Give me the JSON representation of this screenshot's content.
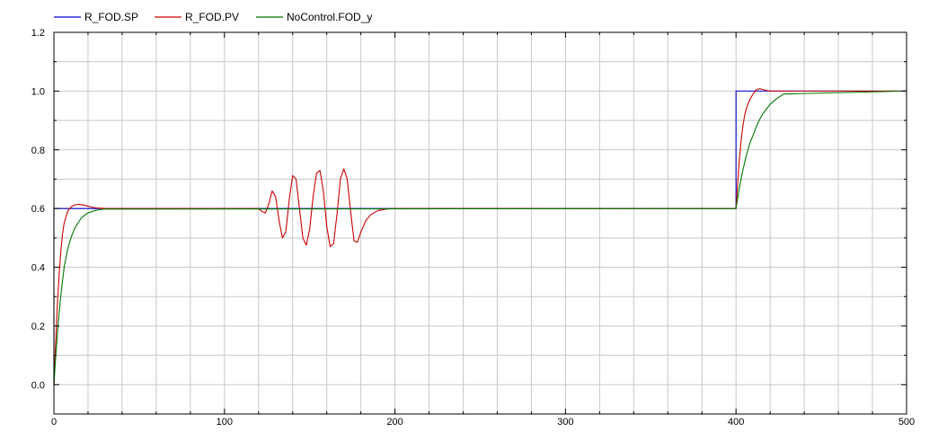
{
  "chart_data": {
    "type": "line",
    "title": "",
    "xlabel": "",
    "ylabel": "",
    "xlim": [
      0,
      500
    ],
    "ylim": [
      -0.1,
      1.2
    ],
    "x_ticks": [
      0,
      100,
      200,
      300,
      400,
      500
    ],
    "x_tick_labels": [
      "0",
      "100",
      "200",
      "300",
      "400",
      "500"
    ],
    "y_ticks": [
      0.0,
      0.2,
      0.4,
      0.6,
      0.8,
      1.0,
      1.2
    ],
    "y_tick_labels": [
      "0.0",
      "0.2",
      "0.4",
      "0.6",
      "0.8",
      "1.0",
      "1.2"
    ],
    "grid": true,
    "legend_position": "top-left",
    "series": [
      {
        "name": "R_FOD.SP",
        "color": "#0000cc",
        "x": [
          0,
          0,
          400,
          400,
          500
        ],
        "y": [
          0,
          0.6,
          0.6,
          1.0,
          1.0
        ]
      },
      {
        "name": "R_FOD.PV",
        "color": "#cc0000",
        "x": [
          0,
          1,
          2,
          3,
          4,
          5,
          6,
          8,
          10,
          12,
          14,
          16,
          18,
          20,
          22,
          25,
          28,
          30,
          120,
          122,
          124,
          126,
          128,
          130,
          132,
          134,
          136,
          138,
          140,
          142,
          144,
          146,
          148,
          150,
          152,
          154,
          156,
          158,
          160,
          162,
          164,
          166,
          168,
          170,
          172,
          174,
          176,
          178,
          180,
          183,
          186,
          190,
          195,
          200,
          400,
          401,
          402,
          403,
          404,
          405,
          406,
          408,
          410,
          412,
          414,
          416,
          418,
          420,
          425,
          430,
          500
        ],
        "y": [
          0,
          0.14,
          0.27,
          0.37,
          0.45,
          0.51,
          0.55,
          0.59,
          0.605,
          0.612,
          0.614,
          0.613,
          0.611,
          0.608,
          0.605,
          0.602,
          0.601,
          0.6,
          0.6,
          0.59,
          0.585,
          0.615,
          0.66,
          0.64,
          0.56,
          0.5,
          0.52,
          0.63,
          0.712,
          0.7,
          0.6,
          0.5,
          0.475,
          0.53,
          0.64,
          0.72,
          0.73,
          0.66,
          0.54,
          0.47,
          0.48,
          0.58,
          0.7,
          0.735,
          0.7,
          0.59,
          0.49,
          0.485,
          0.52,
          0.56,
          0.58,
          0.593,
          0.598,
          0.6,
          0.6,
          0.69,
          0.77,
          0.83,
          0.88,
          0.915,
          0.94,
          0.97,
          0.99,
          1.005,
          1.008,
          1.005,
          1.002,
          1.0,
          1.0,
          1.0,
          1.0
        ]
      },
      {
        "name": "NoControl.FOD_y",
        "color": "#007700",
        "x": [
          0,
          1,
          2,
          3,
          4,
          5,
          6,
          8,
          10,
          12,
          14,
          16,
          18,
          20,
          24,
          28,
          30,
          400,
          402,
          404,
          406,
          408,
          410,
          412,
          414,
          416,
          418,
          420,
          424,
          428,
          500
        ],
        "y": [
          0,
          0.09,
          0.17,
          0.24,
          0.3,
          0.35,
          0.4,
          0.46,
          0.5,
          0.53,
          0.55,
          0.567,
          0.577,
          0.585,
          0.593,
          0.597,
          0.598,
          0.6,
          0.672,
          0.73,
          0.78,
          0.82,
          0.85,
          0.88,
          0.905,
          0.925,
          0.94,
          0.955,
          0.975,
          0.99,
          1.0
        ]
      }
    ]
  }
}
